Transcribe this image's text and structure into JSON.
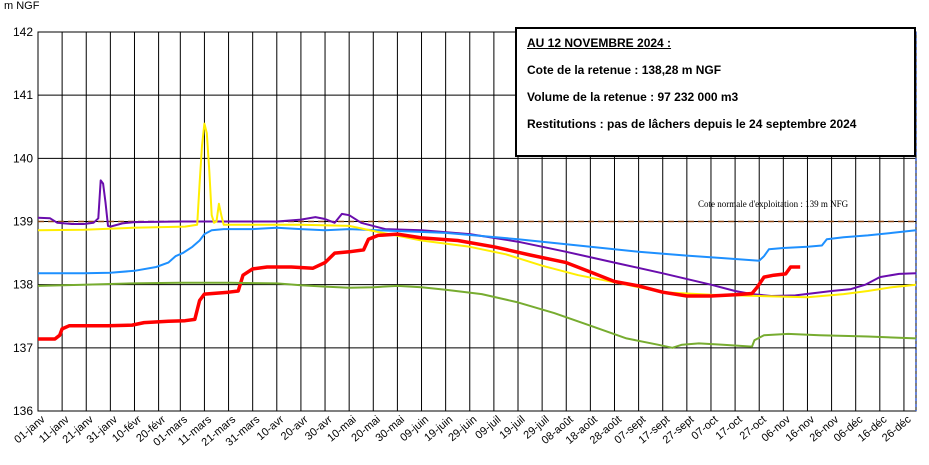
{
  "unit_label": "m NGF",
  "info": {
    "date_line": "AU 12 NOVEMBRE 2024 :",
    "cote_line": "Cote de la retenue : 138,28 m NGF",
    "volume_line": "Volume de la retenue : 97 232 000 m3",
    "restitutions_line": "Restitutions : pas de lâchers depuis le 24 septembre 2024"
  },
  "reference_label": "Cote normale d'exploitation : 139 m NFG",
  "chart_data": {
    "type": "line",
    "title": "",
    "xlabel": "",
    "ylabel": "m NGF",
    "ylim": [
      136,
      142
    ],
    "yticks": [
      136,
      137,
      138,
      139,
      140,
      141,
      142
    ],
    "xlim_day": [
      1,
      365
    ],
    "xticks": [
      {
        "day": 1,
        "label": "01-janv"
      },
      {
        "day": 11,
        "label": "11-janv"
      },
      {
        "day": 21,
        "label": "21-janv"
      },
      {
        "day": 31,
        "label": "31-janv"
      },
      {
        "day": 41,
        "label": "10-févr"
      },
      {
        "day": 51,
        "label": "20-févr"
      },
      {
        "day": 60,
        "label": "01-mars"
      },
      {
        "day": 70,
        "label": "11-mars"
      },
      {
        "day": 80,
        "label": "21-mars"
      },
      {
        "day": 90,
        "label": "31-mars"
      },
      {
        "day": 100,
        "label": "10-avr"
      },
      {
        "day": 110,
        "label": "20-avr"
      },
      {
        "day": 120,
        "label": "30-avr"
      },
      {
        "day": 130,
        "label": "10-mai"
      },
      {
        "day": 140,
        "label": "20-mai"
      },
      {
        "day": 150,
        "label": "30-mai"
      },
      {
        "day": 160,
        "label": "09-juin"
      },
      {
        "day": 170,
        "label": "19-juin"
      },
      {
        "day": 180,
        "label": "29-juin"
      },
      {
        "day": 190,
        "label": "09-juil"
      },
      {
        "day": 200,
        "label": "19-juil"
      },
      {
        "day": 210,
        "label": "29-juil"
      },
      {
        "day": 220,
        "label": "08-août"
      },
      {
        "day": 230,
        "label": "18-août"
      },
      {
        "day": 240,
        "label": "28-août"
      },
      {
        "day": 250,
        "label": "07-sept"
      },
      {
        "day": 260,
        "label": "17-sept"
      },
      {
        "day": 270,
        "label": "27-sept"
      },
      {
        "day": 280,
        "label": "07-oct"
      },
      {
        "day": 290,
        "label": "17-oct"
      },
      {
        "day": 300,
        "label": "27-oct"
      },
      {
        "day": 310,
        "label": "06-nov"
      },
      {
        "day": 320,
        "label": "16-nov"
      },
      {
        "day": 330,
        "label": "26-nov"
      },
      {
        "day": 340,
        "label": "06-déc"
      },
      {
        "day": 350,
        "label": "16-déc"
      },
      {
        "day": 360,
        "label": "26-déc"
      }
    ],
    "grid": true,
    "reference_line": {
      "y": 139,
      "color": "#8B4513",
      "style": "dashed"
    },
    "series": [
      {
        "color": "#6A0DAD",
        "points": [
          [
            1,
            139.06
          ],
          [
            6,
            139.05
          ],
          [
            9,
            138.98
          ],
          [
            15,
            138.96
          ],
          [
            20,
            138.96
          ],
          [
            24,
            138.98
          ],
          [
            26,
            139.05
          ],
          [
            27,
            139.65
          ],
          [
            28,
            139.6
          ],
          [
            29,
            139.3
          ],
          [
            30,
            138.93
          ],
          [
            31,
            138.92
          ],
          [
            36,
            138.97
          ],
          [
            41,
            138.99
          ],
          [
            60,
            139.0
          ],
          [
            80,
            139.0
          ],
          [
            100,
            139.0
          ],
          [
            110,
            139.03
          ],
          [
            116,
            139.07
          ],
          [
            120,
            139.04
          ],
          [
            124,
            138.98
          ],
          [
            127,
            139.12
          ],
          [
            130,
            139.1
          ],
          [
            135,
            138.98
          ],
          [
            145,
            138.88
          ],
          [
            160,
            138.86
          ],
          [
            180,
            138.8
          ],
          [
            200,
            138.68
          ],
          [
            220,
            138.52
          ],
          [
            240,
            138.35
          ],
          [
            260,
            138.18
          ],
          [
            280,
            138.0
          ],
          [
            290,
            137.9
          ],
          [
            297,
            137.85
          ],
          [
            305,
            137.82
          ],
          [
            315,
            137.83
          ],
          [
            330,
            137.9
          ],
          [
            338,
            137.93
          ],
          [
            344,
            138.0
          ],
          [
            350,
            138.12
          ],
          [
            358,
            138.17
          ],
          [
            365,
            138.18
          ]
        ]
      },
      {
        "color": "#1E90FF",
        "points": [
          [
            1,
            138.18
          ],
          [
            20,
            138.18
          ],
          [
            31,
            138.19
          ],
          [
            41,
            138.22
          ],
          [
            50,
            138.28
          ],
          [
            55,
            138.35
          ],
          [
            58,
            138.45
          ],
          [
            61,
            138.5
          ],
          [
            65,
            138.6
          ],
          [
            68,
            138.7
          ],
          [
            70,
            138.8
          ],
          [
            73,
            138.86
          ],
          [
            78,
            138.88
          ],
          [
            90,
            138.88
          ],
          [
            100,
            138.9
          ],
          [
            110,
            138.88
          ],
          [
            120,
            138.86
          ],
          [
            130,
            138.88
          ],
          [
            150,
            138.85
          ],
          [
            170,
            138.82
          ],
          [
            200,
            138.72
          ],
          [
            230,
            138.6
          ],
          [
            250,
            138.52
          ],
          [
            270,
            138.46
          ],
          [
            285,
            138.42
          ],
          [
            300,
            138.38
          ],
          [
            302,
            138.45
          ],
          [
            304,
            138.56
          ],
          [
            310,
            138.58
          ],
          [
            320,
            138.6
          ],
          [
            326,
            138.62
          ],
          [
            328,
            138.72
          ],
          [
            335,
            138.75
          ],
          [
            345,
            138.78
          ],
          [
            355,
            138.82
          ],
          [
            365,
            138.86
          ]
        ]
      },
      {
        "color": "#FFEE00",
        "points": [
          [
            1,
            138.86
          ],
          [
            20,
            138.87
          ],
          [
            40,
            138.9
          ],
          [
            62,
            138.92
          ],
          [
            67,
            138.95
          ],
          [
            68,
            139.6
          ],
          [
            69,
            140.2
          ],
          [
            70,
            140.55
          ],
          [
            71,
            140.4
          ],
          [
            72,
            139.8
          ],
          [
            73,
            139.1
          ],
          [
            74,
            138.98
          ],
          [
            75,
            139.0
          ],
          [
            76,
            139.28
          ],
          [
            77,
            139.1
          ],
          [
            78,
            138.95
          ],
          [
            90,
            138.95
          ],
          [
            110,
            138.95
          ],
          [
            130,
            138.93
          ],
          [
            140,
            138.85
          ],
          [
            160,
            138.7
          ],
          [
            180,
            138.6
          ],
          [
            195,
            138.48
          ],
          [
            210,
            138.3
          ],
          [
            225,
            138.15
          ],
          [
            245,
            138.0
          ],
          [
            260,
            137.88
          ],
          [
            280,
            137.84
          ],
          [
            300,
            137.82
          ],
          [
            320,
            137.8
          ],
          [
            335,
            137.85
          ],
          [
            345,
            137.9
          ],
          [
            355,
            137.96
          ],
          [
            365,
            138.0
          ]
        ]
      },
      {
        "color": "#FF0000",
        "points": [
          [
            1,
            137.14
          ],
          [
            8,
            137.14
          ],
          [
            10,
            137.2
          ],
          [
            11,
            137.3
          ],
          [
            14,
            137.35
          ],
          [
            20,
            137.35
          ],
          [
            30,
            137.35
          ],
          [
            40,
            137.36
          ],
          [
            45,
            137.4
          ],
          [
            55,
            137.42
          ],
          [
            62,
            137.43
          ],
          [
            66,
            137.45
          ],
          [
            68,
            137.75
          ],
          [
            70,
            137.85
          ],
          [
            80,
            137.88
          ],
          [
            84,
            137.9
          ],
          [
            86,
            138.15
          ],
          [
            90,
            138.25
          ],
          [
            96,
            138.28
          ],
          [
            106,
            138.28
          ],
          [
            115,
            138.26
          ],
          [
            120,
            138.35
          ],
          [
            124,
            138.5
          ],
          [
            130,
            138.52
          ],
          [
            136,
            138.55
          ],
          [
            138,
            138.72
          ],
          [
            142,
            138.78
          ],
          [
            150,
            138.8
          ],
          [
            160,
            138.74
          ],
          [
            175,
            138.7
          ],
          [
            190,
            138.6
          ],
          [
            205,
            138.47
          ],
          [
            220,
            138.35
          ],
          [
            230,
            138.2
          ],
          [
            240,
            138.05
          ],
          [
            250,
            137.98
          ],
          [
            260,
            137.88
          ],
          [
            270,
            137.82
          ],
          [
            280,
            137.82
          ],
          [
            290,
            137.84
          ],
          [
            297,
            137.86
          ],
          [
            299,
            137.95
          ],
          [
            302,
            138.12
          ],
          [
            306,
            138.15
          ],
          [
            311,
            138.17
          ],
          [
            313,
            138.28
          ],
          [
            317,
            138.28
          ]
        ]
      },
      {
        "color": "#77AC30",
        "points": [
          [
            1,
            137.98
          ],
          [
            20,
            138.0
          ],
          [
            40,
            138.02
          ],
          [
            60,
            138.03
          ],
          [
            80,
            138.03
          ],
          [
            100,
            138.02
          ],
          [
            110,
            137.99
          ],
          [
            120,
            137.97
          ],
          [
            130,
            137.95
          ],
          [
            140,
            137.96
          ],
          [
            150,
            137.98
          ],
          [
            160,
            137.96
          ],
          [
            170,
            137.92
          ],
          [
            185,
            137.85
          ],
          [
            200,
            137.72
          ],
          [
            215,
            137.55
          ],
          [
            230,
            137.35
          ],
          [
            245,
            137.15
          ],
          [
            258,
            137.05
          ],
          [
            264,
            137.0
          ],
          [
            268,
            137.05
          ],
          [
            275,
            137.07
          ],
          [
            285,
            137.05
          ],
          [
            297,
            137.02
          ],
          [
            298,
            137.12
          ],
          [
            302,
            137.2
          ],
          [
            312,
            137.22
          ],
          [
            325,
            137.2
          ],
          [
            345,
            137.18
          ],
          [
            365,
            137.15
          ]
        ]
      }
    ]
  }
}
